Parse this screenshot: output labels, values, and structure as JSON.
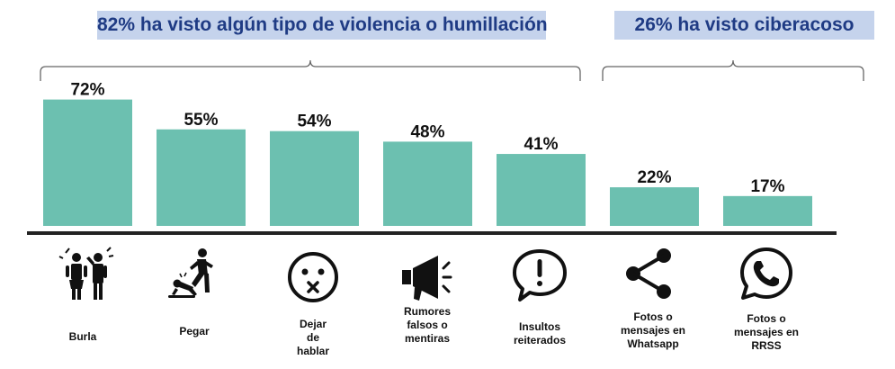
{
  "banners": [
    {
      "text": "82% ha visto algún tipo de violencia o humillación"
    },
    {
      "text": "26% ha visto ciberacoso"
    }
  ],
  "colors": {
    "bar": "#6cc0b0",
    "banner_bg": "#c5d3ec",
    "banner_text": "#1f3b84",
    "axis": "#222222"
  },
  "chart_data": {
    "type": "bar",
    "title": "",
    "xlabel": "",
    "ylabel": "",
    "ylim": [
      0,
      100
    ],
    "grid": false,
    "categories": [
      "Burla",
      "Pegar",
      "Dejar\nde\nhablar",
      "Rumores\nfalsos o\nmentiras",
      "Insultos\nreiterados",
      "Fotos o\nmensajes en\nWhatsapp",
      "Fotos o\nmensajes en\nRRSS"
    ],
    "values": [
      72,
      55,
      54,
      48,
      41,
      22,
      17
    ],
    "value_labels": [
      "72%",
      "55%",
      "54%",
      "48%",
      "41%",
      "22%",
      "17%"
    ],
    "icons": [
      "mocking-people-icon",
      "kicking-person-icon",
      "silenced-face-icon",
      "megaphone-icon",
      "exclamation-speech-bubble-icon",
      "share-icon",
      "whatsapp-icon"
    ]
  }
}
